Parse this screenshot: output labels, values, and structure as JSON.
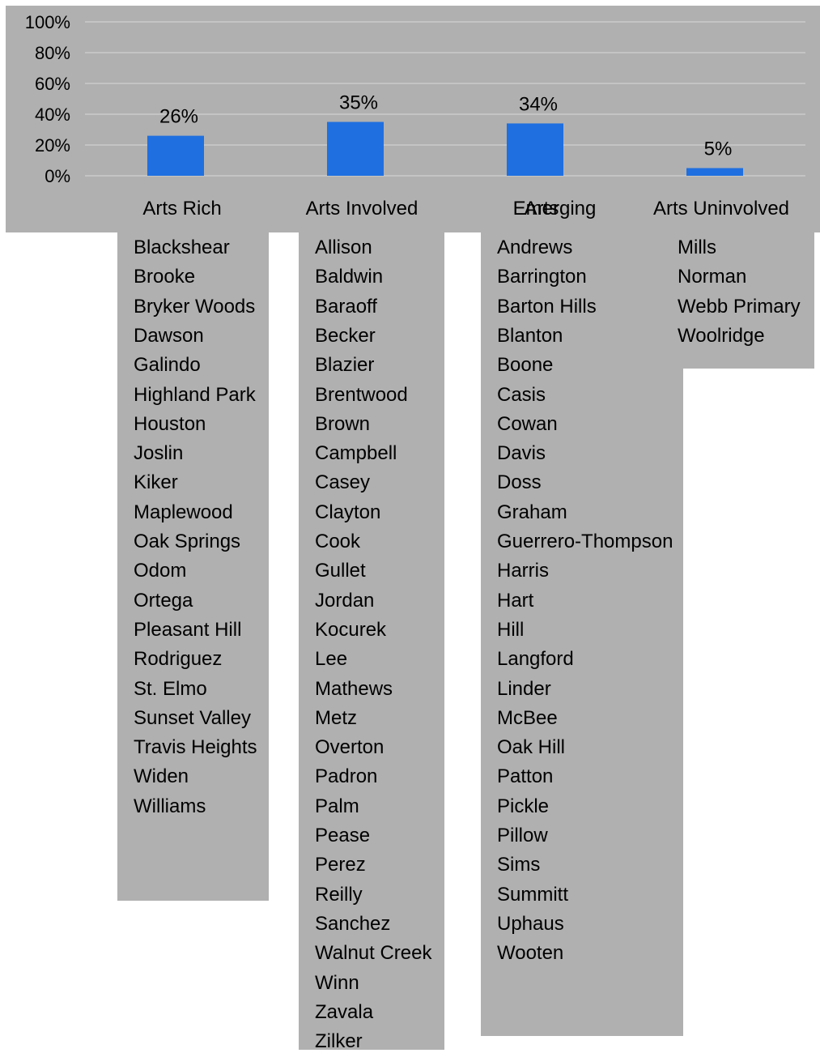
{
  "colors": {
    "panel": "#b0b0b0",
    "bar": "#1f6fe0",
    "grid": "#d9d9d9",
    "text": "#000000"
  },
  "chart_data": {
    "type": "bar",
    "categories": [
      "Arts Rich",
      "Arts Involved",
      "Arts",
      "Arts Uninvolved"
    ],
    "category_overlay": {
      "index": 2,
      "text": "Emerging"
    },
    "values": [
      26,
      35,
      34,
      5
    ],
    "data_labels": [
      "26%",
      "35%",
      "34%",
      "5%"
    ],
    "ylim": [
      0,
      100
    ],
    "yticks": [
      0,
      20,
      40,
      60,
      80,
      100
    ],
    "ytick_labels": [
      "0%",
      "20%",
      "40%",
      "60%",
      "80%",
      "100%"
    ],
    "grid": true,
    "xlabel": "",
    "ylabel": "",
    "title": ""
  },
  "school_lists": [
    {
      "category": "Arts Rich",
      "schools": [
        "Blackshear",
        "Brooke",
        "Bryker Woods",
        "Dawson",
        "Galindo",
        "Highland Park",
        "Houston",
        "Joslin",
        "Kiker",
        "Maplewood",
        "Oak Springs",
        "Odom",
        "Ortega",
        "Pleasant Hill",
        "Rodriguez",
        "St. Elmo",
        "Sunset Valley",
        "Travis Heights",
        "Widen",
        "Williams"
      ]
    },
    {
      "category": "Arts Involved",
      "schools": [
        "Allison",
        "Baldwin",
        "Baraoff",
        "Becker",
        "Blazier",
        "Brentwood",
        "Brown",
        "Campbell",
        "Casey",
        "Clayton",
        "Cook",
        "Gullet",
        "Jordan",
        "Kocurek",
        "Lee",
        "Mathews",
        "Metz",
        "Overton",
        "Padron",
        "Palm",
        "Pease",
        "Perez",
        "Reilly",
        "Sanchez",
        "Walnut Creek",
        "Winn",
        "Zavala",
        "Zilker"
      ]
    },
    {
      "category": "Arts Emerging",
      "schools": [
        "Andrews",
        "Barrington",
        "Barton Hills",
        "Blanton",
        "Boone",
        "Casis",
        "Cowan",
        "Davis",
        "Doss",
        "Graham",
        "Guerrero-Thompson",
        "Harris",
        "Hart",
        "Hill",
        "Langford",
        "Linder",
        "McBee",
        "Oak Hill",
        "Patton",
        "Pickle",
        "Pillow",
        "Sims",
        "Summitt",
        "Uphaus",
        "Wooten"
      ]
    },
    {
      "category": "Arts Uninvolved",
      "schools": [
        "Mills",
        "Norman",
        "Webb Primary",
        "Woolridge"
      ]
    }
  ]
}
